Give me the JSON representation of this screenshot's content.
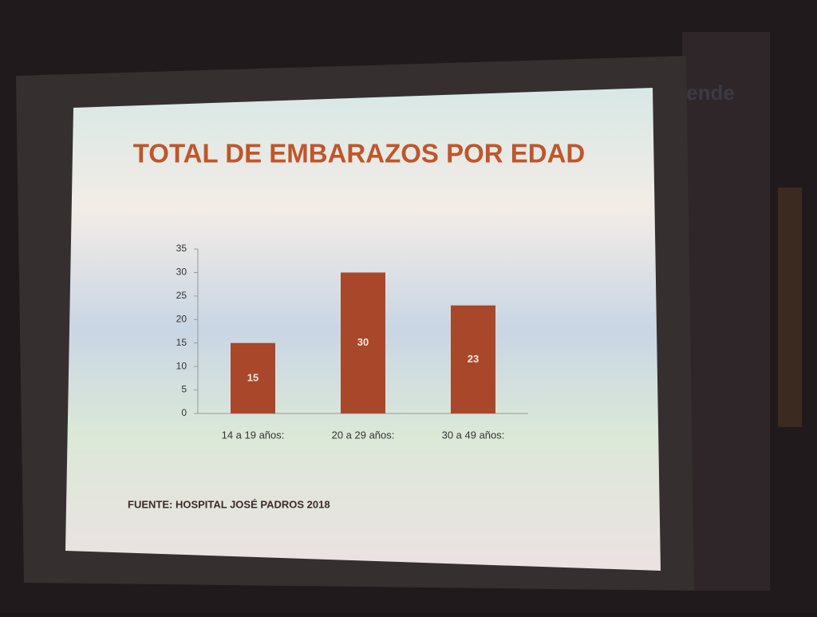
{
  "chart_data": {
    "type": "bar",
    "title": "TOTAL DE EMBARAZOS POR EDAD",
    "categories": [
      "14 a 19 años:",
      "20 a 29 años:",
      "30 a 49 años:"
    ],
    "values": [
      15,
      30,
      23
    ],
    "color": "#a9472a",
    "ylim": [
      0,
      35
    ],
    "yticks": [
      0,
      5,
      10,
      15,
      20,
      25,
      30,
      35
    ],
    "source": "FUENTE: HOSPITAL JOSÉ PADROS 2018"
  },
  "wall_text": "rende"
}
